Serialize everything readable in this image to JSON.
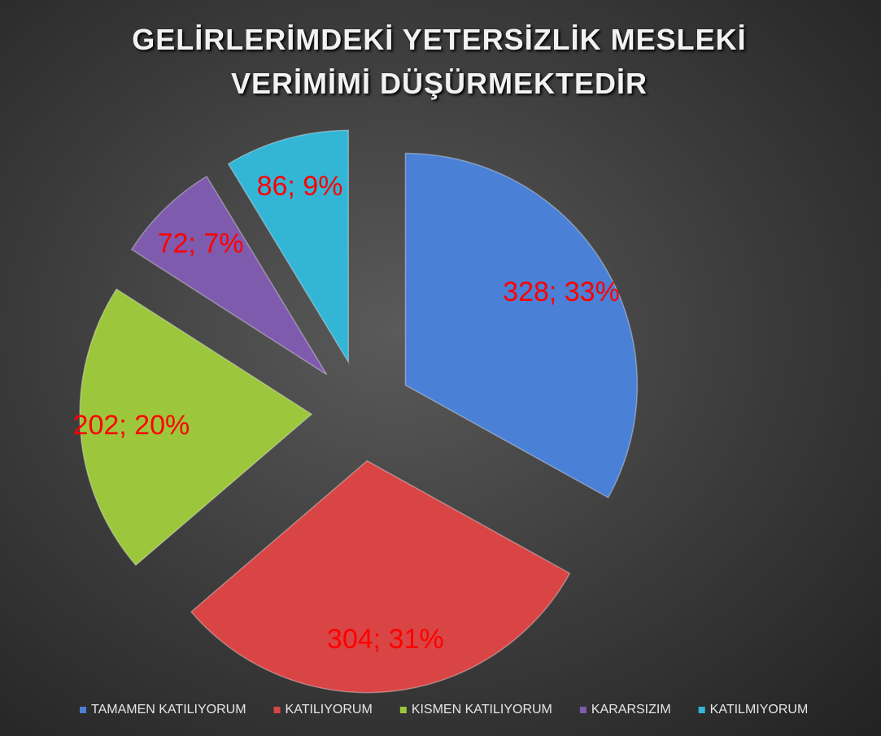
{
  "chart_data": {
    "type": "pie",
    "title": "GELİRLERİMDEKİ YETERSİZLİK MESLEKİ VERİMİMİ DÜŞÜRMEKTEDİR",
    "categories": [
      "TAMAMEN KATILIYORUM",
      "KATILIYORUM",
      "KISMEN KATILIYORUM",
      "KARARSIZIM",
      "KATILMIYORUM"
    ],
    "values": [
      328,
      304,
      202,
      72,
      86
    ],
    "value_labels": [
      "328; 33%",
      "304; 31%",
      "202; 20%",
      "72; 7%",
      "86; 9%"
    ],
    "colors": [
      "#4a80d6",
      "#d94444",
      "#9cc73c",
      "#7f5bad",
      "#33b6d6"
    ],
    "label_color": "#ff0000",
    "legend": "bottom"
  }
}
